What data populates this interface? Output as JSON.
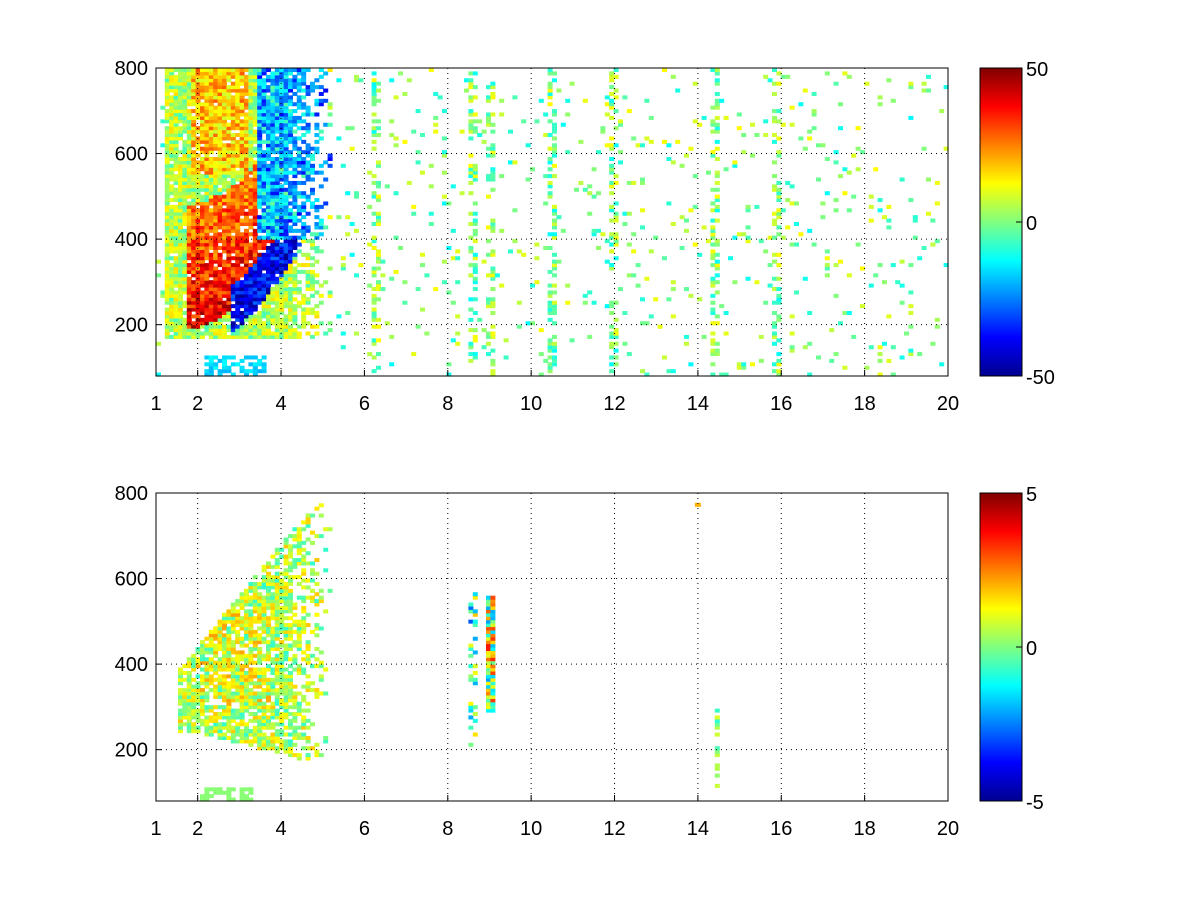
{
  "chart_data": [
    {
      "type": "heatmap",
      "panel": "top",
      "x_range": [
        1,
        20
      ],
      "y_range": [
        80,
        800
      ],
      "xticks": [
        1,
        2,
        4,
        6,
        8,
        10,
        12,
        14,
        16,
        18,
        20
      ],
      "xtick_labels": [
        "1",
        "2",
        "4",
        "6",
        "8",
        "10",
        "12",
        "14",
        "16",
        "18",
        "20"
      ],
      "yticks": [
        200,
        400,
        600,
        800
      ],
      "ytick_labels": [
        "200",
        "400",
        "600",
        "800"
      ],
      "grid": true,
      "colormap": "jet",
      "clim": [
        -50,
        50
      ],
      "colorbar": {
        "ticks": [
          -50,
          0,
          50
        ],
        "tick_labels": [
          "-50",
          "0",
          "50"
        ]
      },
      "title": "",
      "xlabel": "",
      "ylabel": "",
      "features": {
        "warm_band": {
          "description_x_range": [
            1.5,
            4.0
          ],
          "base_y_at_x2": 240,
          "top_y_at_x4": 800,
          "value": 40
        },
        "cool_band": {
          "x_range": [
            3.0,
            5.2
          ],
          "value": -40
        },
        "sparse_noise_value_range": [
          -15,
          15
        ],
        "vertical_streaks_x": [
          6.3,
          8.6,
          9.0,
          10.5,
          12.0,
          14.4,
          15.9
        ]
      }
    },
    {
      "type": "heatmap",
      "panel": "bottom",
      "x_range": [
        1,
        20
      ],
      "y_range": [
        80,
        800
      ],
      "xticks": [
        1,
        2,
        4,
        6,
        8,
        10,
        12,
        14,
        16,
        18,
        20
      ],
      "xtick_labels": [
        "1",
        "2",
        "4",
        "6",
        "8",
        "10",
        "12",
        "14",
        "16",
        "18",
        "20"
      ],
      "yticks": [
        200,
        400,
        600,
        800
      ],
      "ytick_labels": [
        "200",
        "400",
        "600",
        "800"
      ],
      "grid": true,
      "colormap": "jet",
      "clim": [
        -5,
        5
      ],
      "colorbar": {
        "ticks": [
          -5,
          0,
          5
        ],
        "tick_labels": [
          "-5",
          "0",
          "5"
        ]
      },
      "title": "",
      "xlabel": "",
      "ylabel": "",
      "features": {
        "main_blob_x_range": [
          1.5,
          5.2
        ],
        "main_blob_value_range": [
          -1,
          2
        ],
        "column_x_9_0": {
          "x": 9.0,
          "y_range": [
            290,
            560
          ],
          "value_range": [
            -3,
            3
          ]
        },
        "column_x_8_6": {
          "x": 8.6,
          "y_range": [
            210,
            600
          ]
        },
        "column_x_14_5": {
          "x": 14.5,
          "y_range": [
            100,
            300
          ]
        },
        "point_x_14": {
          "x": 14.0,
          "y": 770,
          "value": 2
        }
      }
    }
  ]
}
